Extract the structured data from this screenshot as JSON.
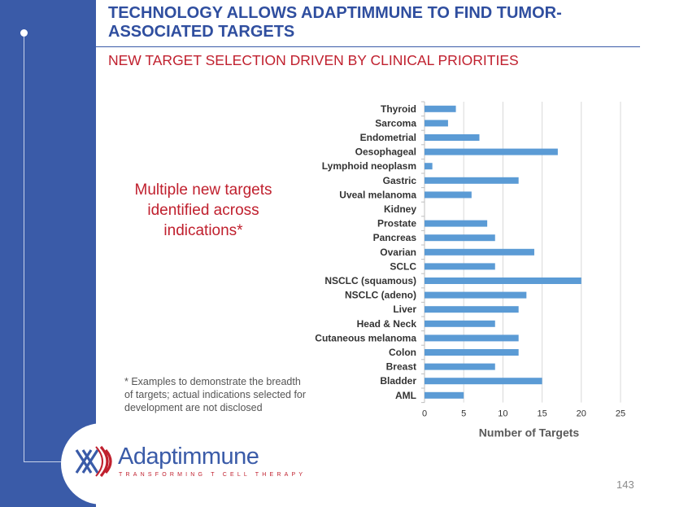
{
  "header": {
    "title": "TECHNOLOGY ALLOWS ADAPTIMMUNE TO FIND TUMOR-ASSOCIATED TARGETS",
    "subtitle": "NEW TARGET SELECTION DRIVEN BY CLINICAL PRIORITIES"
  },
  "callout": "Multiple new targets identified across indications*",
  "footnote": "* Examples to demonstrate the breadth of targets; actual indications selected for development are not disclosed",
  "logo": {
    "name": "Adaptimmune",
    "tagline": "TRANSFORMING T CELL THERAPY"
  },
  "page_number": "143",
  "colors": {
    "sidebar": "#3a5ba8",
    "title": "#2f4e9f",
    "accent_red": "#c0202e",
    "bar": "#5b9bd5"
  },
  "chart_data": {
    "type": "bar",
    "orientation": "horizontal",
    "categories": [
      "Thyroid",
      "Sarcoma",
      "Endometrial",
      "Oesophageal",
      "Lymphoid neoplasm",
      "Gastric",
      "Uveal melanoma",
      "Kidney",
      "Prostate",
      "Pancreas",
      "Ovarian",
      "SCLC",
      "NSCLC (squamous)",
      "NSCLC (adeno)",
      "Liver",
      "Head & Neck",
      "Cutaneous melanoma",
      "Colon",
      "Breast",
      "Bladder",
      "AML"
    ],
    "values": [
      4,
      3,
      7,
      17,
      1,
      12,
      6,
      0,
      8,
      9,
      14,
      9,
      20,
      13,
      12,
      9,
      12,
      12,
      9,
      15,
      5
    ],
    "xlabel": "Number of Targets",
    "ylabel": "",
    "xlim": [
      0,
      25
    ],
    "xticks": [
      0,
      5,
      10,
      15,
      20,
      25
    ],
    "grid": true
  }
}
